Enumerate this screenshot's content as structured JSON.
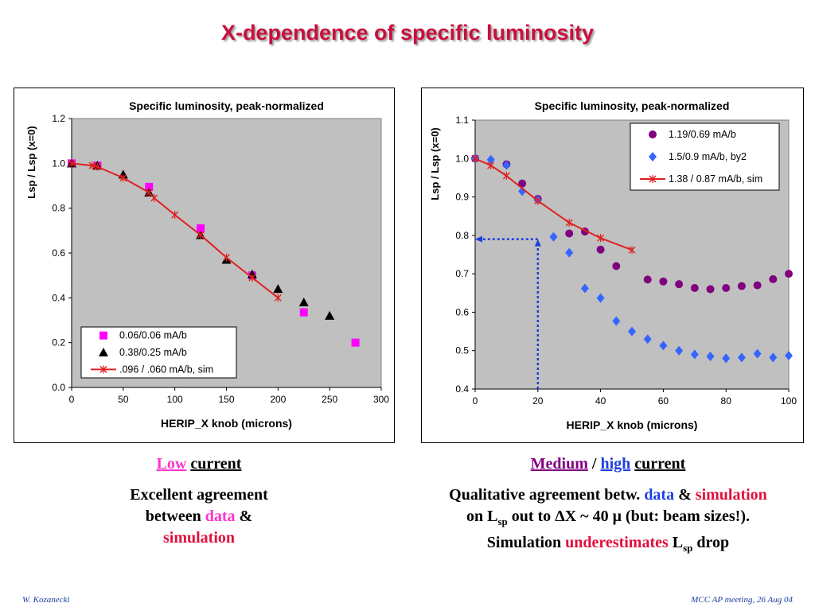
{
  "slide": {
    "title": "X-dependence of specific luminosity",
    "footer_left": "W. Kozanecki",
    "footer_right": "MCC AP meeting, 26 Aug 04"
  },
  "left_caption": {
    "word1": "Low",
    "word2": "current",
    "line1": "Excellent agreement",
    "line2a": "between ",
    "line2b": "data",
    "line2c": " &",
    "line3": "simulation"
  },
  "right_caption": {
    "word1": "Medium",
    "sep": " / ",
    "word2": "high",
    "word3": "current",
    "l1a": "Qualitative agreement betw. ",
    "l1b": "data",
    "l1c": " & ",
    "l1d": "simulation",
    "l2a": "on L",
    "l2sub": "sp",
    "l2b": " out to ",
    "l2delta": "Δ",
    "l2c": "X ~ 40 ",
    "l2mu": "μ",
    "l2d": " (but: beam sizes!).",
    "l3a": "Simulation ",
    "l3b": "underestimates",
    "l3c": " L",
    "l3sub": "sp",
    "l3d": " drop"
  },
  "chart_data": [
    {
      "type": "scatter",
      "title": "Specific luminosity, peak-normalized",
      "xlabel": "HERIP_X knob (microns)",
      "ylabel": "Lsp / Lsp (x=0)",
      "xlim": [
        0,
        300
      ],
      "ylim": [
        0,
        1.2
      ],
      "xticks": [
        "0",
        "50",
        "100",
        "150",
        "200",
        "250",
        "300"
      ],
      "yticks": [
        "0.0",
        "0.2",
        "0.4",
        "0.6",
        "0.8",
        "1.0",
        "1.2"
      ],
      "grid": false,
      "legend_position": "bottom-left",
      "series": [
        {
          "name": "0.06/0.06 mA/b",
          "marker": "square",
          "color": "#ff00ff",
          "x": [
            0,
            25,
            75,
            125,
            175,
            225,
            275
          ],
          "y": [
            1.0,
            0.99,
            0.895,
            0.71,
            0.5,
            0.335,
            0.2
          ]
        },
        {
          "name": "0.38/0.25 mA/b",
          "marker": "triangle",
          "color": "#000000",
          "x": [
            0,
            25,
            50,
            75,
            125,
            150,
            175,
            200,
            225,
            250
          ],
          "y": [
            1.0,
            0.99,
            0.95,
            0.87,
            0.68,
            0.57,
            0.505,
            0.44,
            0.38,
            0.32
          ]
        },
        {
          "name": ".096 / .060 mA/b, sim",
          "marker": "x-line",
          "color": "#e02020",
          "x": [
            0,
            20,
            25,
            50,
            75,
            80,
            100,
            125,
            150,
            175,
            200
          ],
          "y": [
            1.0,
            0.99,
            0.985,
            0.935,
            0.87,
            0.845,
            0.77,
            0.68,
            0.58,
            0.49,
            0.4
          ]
        }
      ]
    },
    {
      "type": "scatter",
      "title": "Specific luminosity, peak-normalized",
      "xlabel": "HERIP_X knob (microns)",
      "ylabel": "Lsp / Lsp (x=0)",
      "xlim": [
        0,
        100
      ],
      "ylim": [
        0.4,
        1.1
      ],
      "xticks": [
        "0",
        "20",
        "40",
        "60",
        "80",
        "100"
      ],
      "yticks": [
        "0.4",
        "0.5",
        "0.6",
        "0.7",
        "0.8",
        "0.9",
        "1.0",
        "1.1"
      ],
      "grid": false,
      "legend_position": "top-right",
      "series": [
        {
          "name": "1.19/0.69 mA/b",
          "marker": "circle",
          "color": "#800080",
          "x": [
            0,
            10,
            15,
            20,
            30,
            35,
            40,
            45,
            55,
            60,
            65,
            70,
            75,
            80,
            85,
            90,
            95,
            100
          ],
          "y": [
            1.0,
            0.985,
            0.935,
            0.895,
            0.805,
            0.81,
            0.763,
            0.72,
            0.685,
            0.68,
            0.673,
            0.663,
            0.66,
            0.663,
            0.668,
            0.67,
            0.686,
            0.7
          ]
        },
        {
          "name": "1.5/0.9 mA/b, by2",
          "marker": "diamond",
          "color": "#3366ff",
          "x": [
            0,
            5,
            10,
            15,
            20,
            25,
            30,
            35,
            40,
            45,
            50,
            55,
            60,
            65,
            70,
            75,
            80,
            85,
            90,
            95,
            100
          ],
          "y": [
            1.0,
            0.997,
            0.983,
            0.915,
            0.893,
            0.796,
            0.755,
            0.662,
            0.637,
            0.577,
            0.55,
            0.53,
            0.513,
            0.5,
            0.49,
            0.485,
            0.48,
            0.482,
            0.492,
            0.482,
            0.487
          ]
        },
        {
          "name": "1.38 / 0.87 mA/b, sim",
          "marker": "x-line",
          "color": "#e02020",
          "x": [
            0,
            5,
            10,
            20,
            30,
            40,
            50
          ],
          "y": [
            1.0,
            0.982,
            0.955,
            0.89,
            0.833,
            0.793,
            0.762
          ]
        }
      ],
      "annotation": {
        "type": "arrow-guide",
        "at_x": 20,
        "at_y": 0.79,
        "color": "#1c3fe0"
      }
    }
  ]
}
